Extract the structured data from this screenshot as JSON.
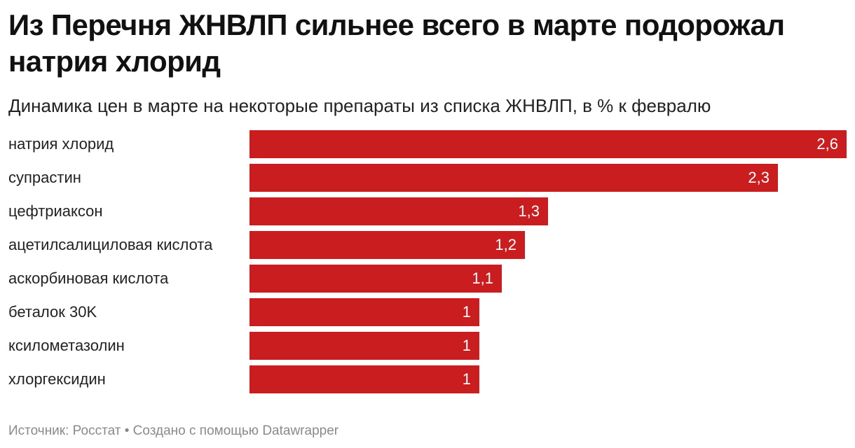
{
  "title": "Из Перечня ЖНВЛП сильнее всего в марте подорожал натрия хлорид",
  "subtitle": "Динамика цен в марте на некоторые препараты из списка ЖНВЛП, в % к февралю",
  "footer": {
    "source": "Источник: Росстат",
    "separator": " • ",
    "credit": "Создано с помощью Datawrapper"
  },
  "colors": {
    "bar": "#c91d1f",
    "value_text": "#ffffff"
  },
  "chart_data": {
    "type": "bar",
    "orientation": "horizontal",
    "title": "Из Перечня ЖНВЛП сильнее всего в марте подорожал натрия хлорид",
    "subtitle": "Динамика цен в марте на некоторые препараты из списка ЖНВЛП, в % к февралю",
    "xlabel": "",
    "ylabel": "",
    "xlim": [
      0,
      2.6
    ],
    "grid": false,
    "categories": [
      "натрия хлорид",
      "супрастин",
      "цефтриаксон",
      "ацетилсалициловая кислота",
      "аскорбиновая кислота",
      "беталок 30K",
      "ксилометазолин",
      "хлоргексидин"
    ],
    "values": [
      2.6,
      2.3,
      1.3,
      1.2,
      1.1,
      1,
      1,
      1
    ],
    "value_labels": [
      "2,6",
      "2,3",
      "1,3",
      "1,2",
      "1,1",
      "1",
      "1",
      "1"
    ]
  }
}
